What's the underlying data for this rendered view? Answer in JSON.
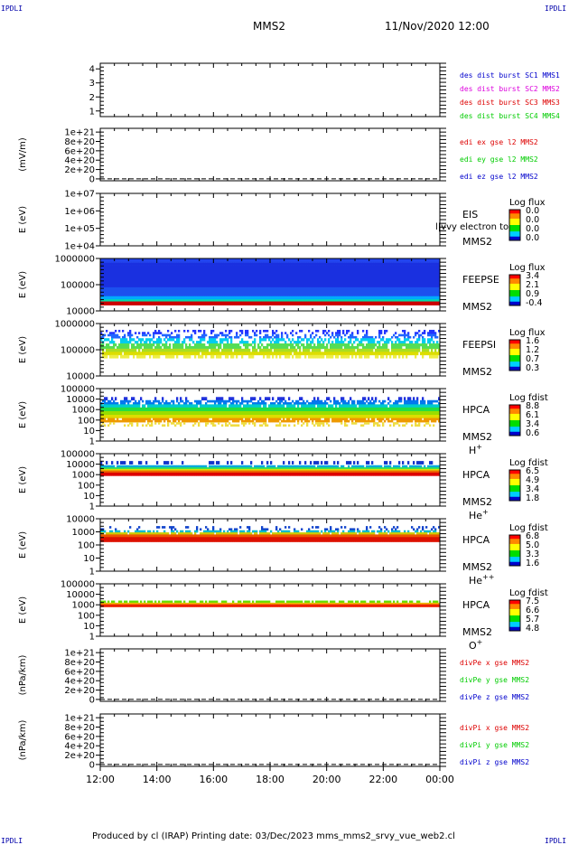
{
  "corners": {
    "tl": "IPDLI",
    "tr": "IPDLI",
    "bl": "IPDLI",
    "br": "IPDLI"
  },
  "header": {
    "spacecraft": "MMS2",
    "datetime": "11/Nov/2020 12:00"
  },
  "footer": {
    "text": "Produced by cl (IRAP)   Printing date: 03/Dec/2023   mms_mms2_srvy_vue_web2.cl"
  },
  "colors": {
    "red": "#dd0000",
    "green": "#00cc00",
    "blue": "#0000cc",
    "magenta": "#dd00dd",
    "axis": "#000000"
  },
  "chart_data": {
    "type": "heatmap",
    "x_range": [
      "12:00",
      "00:00"
    ],
    "xticks": [
      "12:00",
      "14:00",
      "16:00",
      "18:00",
      "20:00",
      "22:00",
      "00:00"
    ],
    "panels": [
      {
        "kind": "lines",
        "ylabel": "",
        "yticks": [
          "4",
          "3",
          "2",
          "1"
        ],
        "ylim": [
          0.6,
          4.4
        ],
        "legend": [
          {
            "text": "des dist burst SC1 MMS1",
            "color": "#0000cc"
          },
          {
            "text": "des dist burst SC2 MMS2",
            "color": "#dd00dd"
          },
          {
            "text": "des dist burst SC3 MMS3",
            "color": "#dd0000"
          },
          {
            "text": "des dist burst SC4 MMS4",
            "color": "#00cc00"
          }
        ],
        "series": []
      },
      {
        "kind": "lines",
        "ylabel": "(mV/m)",
        "yticks": [
          "1e+21",
          "8e+20",
          "6e+20",
          "4e+20",
          "2e+20",
          "0"
        ],
        "ylim": [
          -4e+19,
          1.08e+21
        ],
        "legend": [
          {
            "text": "edi ex gse l2 MMS2",
            "color": "#dd0000"
          },
          {
            "text": "edi ey gse l2 MMS2",
            "color": "#00cc00"
          },
          {
            "text": "edi ez gse l2 MMS2",
            "color": "#0000cc"
          }
        ],
        "zero_line": true,
        "series": []
      },
      {
        "kind": "spectrogram",
        "ylabel": "E (eV)",
        "yticks": [
          "1e+07",
          "1e+06",
          "1e+05",
          "1e+04"
        ],
        "instrument": "EIS",
        "spacecraft": "MMS2",
        "species": "",
        "overlay_text": "l|vvy electron to",
        "colorbar": {
          "title": "Log flux",
          "ticks": [
            "0.0",
            "0.0",
            "0.0",
            "0.0"
          ]
        },
        "bands": []
      },
      {
        "kind": "spectrogram",
        "ylabel": "E (eV)",
        "yticks": [
          "1000000",
          "100000",
          "10000"
        ],
        "instrument": "FEEPSE",
        "spacecraft": "MMS2",
        "species": "",
        "colorbar": {
          "title": "Log flux",
          "ticks": [
            "3.4",
            "2.1",
            "0.9",
            "-0.4"
          ]
        },
        "bands": [
          {
            "from": 0.0,
            "to": 0.08,
            "color": "#2244ee",
            "density": 1.0
          },
          {
            "from": 0.08,
            "to": 0.55,
            "color": "#1a30e0",
            "density": 1.0
          },
          {
            "from": 0.55,
            "to": 0.72,
            "color": "#1c50ee",
            "density": 1.0
          },
          {
            "from": 0.72,
            "to": 0.78,
            "color": "#00aaff",
            "density": 1.0
          },
          {
            "from": 0.78,
            "to": 0.82,
            "color": "#00ddaa",
            "density": 1.0
          },
          {
            "from": 0.82,
            "to": 0.89,
            "color": "#cc0000",
            "density": 1.0
          }
        ]
      },
      {
        "kind": "spectrogram",
        "ylabel": "E (eV)",
        "yticks": [
          "1000000",
          "100000",
          "10000"
        ],
        "instrument": "FEEPSI",
        "spacecraft": "MMS2",
        "species": "",
        "colorbar": {
          "title": "Log flux",
          "ticks": [
            "1.6",
            "1.2",
            "0.7",
            "0.3"
          ]
        },
        "bands": [
          {
            "from": 0.12,
            "to": 0.2,
            "color": "#2233ff",
            "density": 0.35
          },
          {
            "from": 0.2,
            "to": 0.28,
            "color": "#2266ff",
            "density": 0.45
          },
          {
            "from": 0.28,
            "to": 0.38,
            "color": "#00ccee",
            "density": 0.55
          },
          {
            "from": 0.38,
            "to": 0.48,
            "color": "#55dd55",
            "density": 0.8
          },
          {
            "from": 0.48,
            "to": 0.54,
            "color": "#aadd22",
            "density": 0.9
          },
          {
            "from": 0.54,
            "to": 0.6,
            "color": "#dddd00",
            "density": 0.95
          },
          {
            "from": 0.6,
            "to": 0.66,
            "color": "#eeee44",
            "density": 0.6
          }
        ]
      },
      {
        "kind": "spectrogram",
        "ylabel": "E (eV)",
        "yticks": [
          "100000",
          "10000",
          "1000",
          "100",
          "10",
          "1"
        ],
        "instrument": "HPCA",
        "spacecraft": "MMS2",
        "species": "H+",
        "colorbar": {
          "title": "Log fdist",
          "ticks": [
            "8.8",
            "6.1",
            "3.4",
            "0.6"
          ]
        },
        "bands": [
          {
            "from": 0.16,
            "to": 0.22,
            "color": "#2233dd",
            "density": 0.35
          },
          {
            "from": 0.22,
            "to": 0.3,
            "color": "#0077ee",
            "density": 0.7
          },
          {
            "from": 0.3,
            "to": 0.36,
            "color": "#00cccc",
            "density": 0.95
          },
          {
            "from": 0.36,
            "to": 0.43,
            "color": "#22dd44",
            "density": 1.0
          },
          {
            "from": 0.43,
            "to": 0.5,
            "color": "#99dd00",
            "density": 1.0
          },
          {
            "from": 0.5,
            "to": 0.56,
            "color": "#dddd00",
            "density": 1.0
          },
          {
            "from": 0.56,
            "to": 0.64,
            "color": "#ee9900",
            "density": 0.85
          },
          {
            "from": 0.64,
            "to": 0.72,
            "color": "#eedd44",
            "density": 0.35
          }
        ]
      },
      {
        "kind": "spectrogram",
        "ylabel": "E (eV)",
        "yticks": [
          "100000",
          "10000",
          "1000",
          "100",
          "10",
          "1"
        ],
        "instrument": "HPCA",
        "spacecraft": "MMS2",
        "species": "He+",
        "colorbar": {
          "title": "Log fdist",
          "ticks": [
            "6.5",
            "4.9",
            "3.4",
            "1.8"
          ]
        },
        "bands": [
          {
            "from": 0.14,
            "to": 0.2,
            "color": "#1133cc",
            "density": 0.35
          },
          {
            "from": 0.22,
            "to": 0.26,
            "color": "#00aadd",
            "density": 0.9
          },
          {
            "from": 0.26,
            "to": 0.29,
            "color": "#22dd66",
            "density": 1.0
          },
          {
            "from": 0.29,
            "to": 0.32,
            "color": "#dddd00",
            "density": 1.0
          },
          {
            "from": 0.32,
            "to": 0.36,
            "color": "#ee6600",
            "density": 1.0
          },
          {
            "from": 0.36,
            "to": 0.42,
            "color": "#dd0000",
            "density": 1.0
          }
        ]
      },
      {
        "kind": "spectrogram",
        "ylabel": "E (eV)",
        "yticks": [
          "10000",
          "1000",
          "100",
          "10",
          "1"
        ],
        "instrument": "HPCA",
        "spacecraft": "MMS2",
        "species": "He++",
        "colorbar": {
          "title": "Log fdist",
          "ticks": [
            "6.8",
            "5.0",
            "3.3",
            "1.6"
          ]
        },
        "bands": [
          {
            "from": 0.14,
            "to": 0.22,
            "color": "#1144cc",
            "density": 0.2
          },
          {
            "from": 0.22,
            "to": 0.26,
            "color": "#00bbcc",
            "density": 0.6
          },
          {
            "from": 0.26,
            "to": 0.3,
            "color": "#cccc00",
            "density": 0.9
          },
          {
            "from": 0.3,
            "to": 0.35,
            "color": "#ee5500",
            "density": 1.0
          },
          {
            "from": 0.35,
            "to": 0.44,
            "color": "#dd1100",
            "density": 1.0
          }
        ]
      },
      {
        "kind": "spectrogram",
        "ylabel": "E (eV)",
        "yticks": [
          "100000",
          "10000",
          "1000",
          "100",
          "10",
          "1"
        ],
        "instrument": "HPCA",
        "spacecraft": "MMS2",
        "species": "O+",
        "colorbar": {
          "title": "Log fdist",
          "ticks": [
            "7.5",
            "6.6",
            "5.7",
            "4.8"
          ]
        },
        "bands": [
          {
            "from": 0.32,
            "to": 0.36,
            "color": "#66dd00",
            "density": 0.7
          },
          {
            "from": 0.36,
            "to": 0.39,
            "color": "#eebb00",
            "density": 1.0
          },
          {
            "from": 0.39,
            "to": 0.44,
            "color": "#ee2200",
            "density": 1.0
          }
        ]
      },
      {
        "kind": "lines",
        "ylabel": "(nPa/km)",
        "yticks": [
          "1e+21",
          "8e+20",
          "6e+20",
          "4e+20",
          "2e+20",
          "0"
        ],
        "ylim": [
          -4e+19,
          1.08e+21
        ],
        "legend": [
          {
            "text": "divPe x gse MMS2",
            "color": "#dd0000"
          },
          {
            "text": "divPe y gse MMS2",
            "color": "#00cc00"
          },
          {
            "text": "divPe z gse MMS2",
            "color": "#0000cc"
          }
        ],
        "zero_line": true,
        "series": []
      },
      {
        "kind": "lines",
        "ylabel": "(nPa/km)",
        "yticks": [
          "1e+21",
          "8e+20",
          "6e+20",
          "4e+20",
          "2e+20",
          "0"
        ],
        "ylim": [
          -4e+19,
          1.08e+21
        ],
        "legend": [
          {
            "text": "divPi x gse MMS2",
            "color": "#dd0000"
          },
          {
            "text": "divPi y gse MMS2",
            "color": "#00cc00"
          },
          {
            "text": "divPi z gse MMS2",
            "color": "#0000cc"
          }
        ],
        "zero_line": true,
        "series": []
      }
    ]
  }
}
